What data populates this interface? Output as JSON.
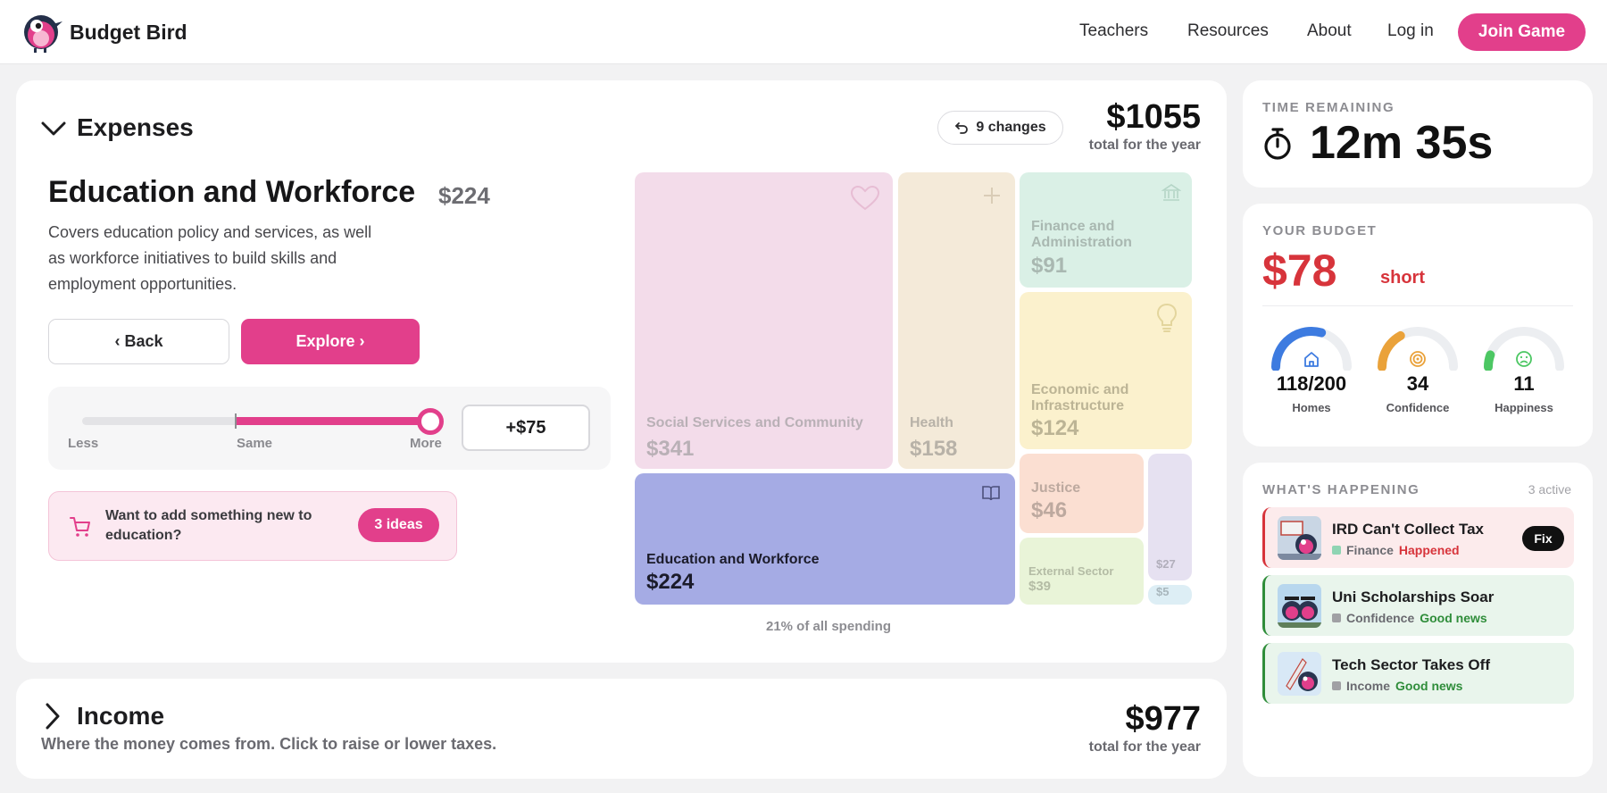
{
  "nav": {
    "brand": "Budget Bird",
    "links": [
      "Teachers",
      "Resources",
      "About",
      "Log in"
    ],
    "join_label": "Join Game"
  },
  "expenses": {
    "title": "Expenses",
    "changes_label": "9 changes",
    "total": "$1055",
    "total_sub": "total for the year",
    "category": {
      "title": "Education and Workforce",
      "amount": "$224",
      "description": "Covers education policy and services, as well as workforce initiatives to build skills and employment opportunities.",
      "back_label": "‹ Back",
      "explore_label": "Explore ›"
    },
    "slider": {
      "labels": [
        "Less",
        "Same",
        "More"
      ],
      "delta": "+$75",
      "same_fraction": 0.44,
      "value_fraction": 1.0
    },
    "ideas": {
      "text": "Want to add something new to education?",
      "pill": "3 ideas"
    },
    "treemap": {
      "tiles": [
        {
          "name": "Social Services and Community",
          "value": "$341",
          "color": "#f3dcea",
          "text_color": "#b9b0b6",
          "icon": "heart-icon"
        },
        {
          "name": "Health",
          "value": "$158",
          "color": "#f4ead9",
          "text_color": "#b8b2a8",
          "icon": "plus-icon"
        },
        {
          "name": "Finance and Administration",
          "value": "$91",
          "color": "#daf0e6",
          "text_color": "#a9b8b1",
          "icon": "bank-icon"
        },
        {
          "name": "Economic and Infrastructure",
          "value": "$124",
          "color": "#fbf1cd",
          "text_color": "#bcb495",
          "icon": "lightbulb-icon"
        },
        {
          "name": "Education and Workforce",
          "value": "$224",
          "color": "#a5abe4",
          "text_color": "#1b1b2a",
          "icon": "book-icon"
        },
        {
          "name": "Justice",
          "value": "$46",
          "color": "#fbdfd2",
          "text_color": "#bda99f",
          "icon": ""
        },
        {
          "name": "",
          "value": "$27",
          "color": "#e6e1f1",
          "text_color": "#b1aebb",
          "icon": ""
        },
        {
          "name": "External Sector",
          "value": "$39",
          "color": "#e9f4d8",
          "text_color": "#b4bca5",
          "icon": ""
        },
        {
          "name": "",
          "value": "$5",
          "color": "#ddeef5",
          "text_color": "#a8b6bc",
          "icon": ""
        }
      ],
      "note": "21% of all spending"
    }
  },
  "income": {
    "title": "Income",
    "subtitle": "Where the money comes from. Click to raise or lower taxes.",
    "total": "$977",
    "total_sub": "total for the year"
  },
  "timer": {
    "label": "TIME REMAINING",
    "value": "12m 35s"
  },
  "budget": {
    "label": "YOUR BUDGET",
    "amount": "$78",
    "status": "short",
    "gauges": [
      {
        "value": "118/200",
        "label": "Homes",
        "fraction": 0.59,
        "color": "#3d7be0",
        "icon": "home-icon"
      },
      {
        "value": "34",
        "label": "Confidence",
        "fraction": 0.34,
        "color": "#eaa23a",
        "icon": "target-icon"
      },
      {
        "value": "11",
        "label": "Happiness",
        "fraction": 0.11,
        "color": "#4cc763",
        "icon": "sad-face-icon"
      }
    ]
  },
  "happening": {
    "label": "WHAT'S HAPPENING",
    "active": "3 active",
    "events": [
      {
        "title": "IRD Can't Collect Tax",
        "category": "Finance",
        "status": "Happened",
        "status_color": "#d7343b",
        "cat_color": "#8fd4b3",
        "bg": "#fcebec",
        "accent": "#d7343b",
        "action": "Fix"
      },
      {
        "title": "Uni Scholarships Soar",
        "category": "Confidence",
        "status": "Good news",
        "status_color": "#2f8d3a",
        "cat_color": "#a0a0a4",
        "bg": "#e9f5ec",
        "accent": "#2f8d3a",
        "action": ""
      },
      {
        "title": "Tech Sector Takes Off",
        "category": "Income",
        "status": "Good news",
        "status_color": "#2f8d3a",
        "cat_color": "#a0a0a4",
        "bg": "#e9f5ec",
        "accent": "#2f8d3a",
        "action": ""
      }
    ]
  }
}
